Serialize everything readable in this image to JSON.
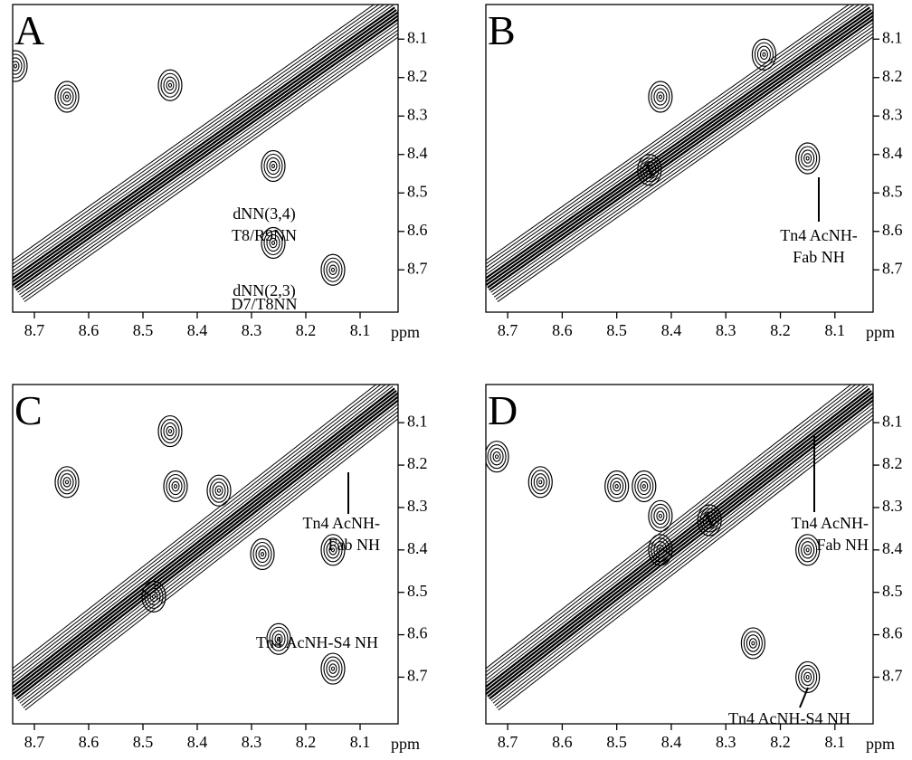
{
  "chart_data": [
    {
      "type": "contour",
      "panel_label": "A",
      "x_label": "ppm",
      "xlim": [
        8.74,
        8.03
      ],
      "ylim": [
        8.01,
        8.81
      ],
      "xticks": [
        8.7,
        8.6,
        8.5,
        8.4,
        8.3,
        8.2,
        8.1
      ],
      "yticks": [
        8.1,
        8.2,
        8.3,
        8.4,
        8.5,
        8.6,
        8.7
      ],
      "annotations": [
        "dNN(3,4)",
        "T8/R9NN",
        "dNN(2,3)",
        "D7/T8NN"
      ],
      "peaks": {
        "x": [
          8.735,
          8.64,
          8.45,
          8.26,
          8.26,
          8.15
        ],
        "y": [
          8.17,
          8.25,
          8.22,
          8.43,
          8.63,
          8.7
        ]
      }
    },
    {
      "type": "contour",
      "panel_label": "B",
      "x_label": "ppm",
      "xlim": [
        8.74,
        8.03
      ],
      "ylim": [
        8.01,
        8.81
      ],
      "xticks": [
        8.7,
        8.6,
        8.5,
        8.4,
        8.3,
        8.2,
        8.1
      ],
      "yticks": [
        8.1,
        8.2,
        8.3,
        8.4,
        8.5,
        8.6,
        8.7
      ],
      "annotations": [
        "Tn4 AcNH-",
        "Fab NH"
      ],
      "peaks": {
        "x": [
          8.23,
          8.42,
          8.15,
          8.44
        ],
        "y": [
          8.14,
          8.25,
          8.41,
          8.44
        ]
      }
    },
    {
      "type": "contour",
      "panel_label": "C",
      "x_label": "ppm",
      "xlim": [
        8.74,
        8.03
      ],
      "ylim": [
        8.01,
        8.81
      ],
      "xticks": [
        8.7,
        8.6,
        8.5,
        8.4,
        8.3,
        8.2,
        8.1
      ],
      "yticks": [
        8.1,
        8.2,
        8.3,
        8.4,
        8.5,
        8.6,
        8.7
      ],
      "annotations": [
        "Tn4 AcNH-",
        "Fab NH",
        "Tn4 AcNH-S4 NH"
      ],
      "peaks": {
        "x": [
          8.45,
          8.64,
          8.44,
          8.36,
          8.28,
          8.15,
          8.25,
          8.15,
          8.48
        ],
        "y": [
          8.12,
          8.24,
          8.25,
          8.26,
          8.41,
          8.4,
          8.61,
          8.68,
          8.51
        ]
      }
    },
    {
      "type": "contour",
      "panel_label": "D",
      "x_label": "ppm",
      "xlim": [
        8.74,
        8.03
      ],
      "ylim": [
        8.01,
        8.81
      ],
      "xticks": [
        8.7,
        8.6,
        8.5,
        8.4,
        8.3,
        8.2,
        8.1
      ],
      "yticks": [
        8.1,
        8.2,
        8.3,
        8.4,
        8.5,
        8.6,
        8.7
      ],
      "annotations": [
        "Tn4 AcNH-",
        "Fab NH",
        "Tn4 AcNH-S4 NH"
      ],
      "peaks": {
        "x": [
          8.72,
          8.64,
          8.5,
          8.42,
          8.15,
          8.25,
          8.15,
          8.42,
          8.33,
          8.45
        ],
        "y": [
          8.18,
          8.24,
          8.25,
          8.4,
          8.4,
          8.62,
          8.7,
          8.32,
          8.33,
          8.25
        ]
      }
    }
  ]
}
